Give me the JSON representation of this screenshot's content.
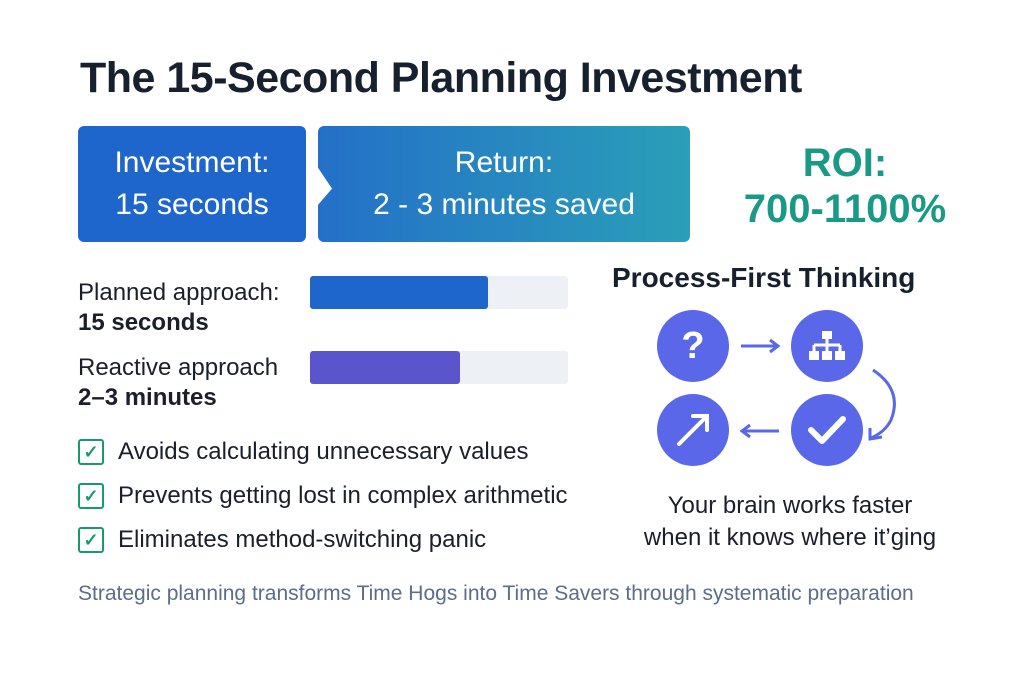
{
  "title": "The 15-Second Planning Investment",
  "investment": {
    "label": "Investment:",
    "value": "15 seconds"
  },
  "return": {
    "label": "Return:",
    "value": "2 - 3 minutes saved"
  },
  "roi": {
    "label": "ROI:",
    "value": "700-1100%"
  },
  "comparison": [
    {
      "label": "Planned approach:",
      "time": "15 seconds",
      "fill_percent": 69,
      "color": "#1f66cc"
    },
    {
      "label": "Reactive approach",
      "time": "2–3 minutes",
      "fill_percent": 58,
      "color": "#5a55cc"
    }
  ],
  "benefits": [
    "Avoids calculating unnecessary values",
    "Prevents getting lost in complex arithmetic",
    "Eliminates method-switching panic"
  ],
  "process": {
    "title": "Process-First Thinking",
    "steps": [
      "question-icon",
      "hierarchy-icon",
      "check-icon",
      "arrow-up-right-icon"
    ],
    "caption_line1": "Your brain works faster",
    "caption_line2": "when it knows where it’ging"
  },
  "footer": "Strategic planning transforms Time Hogs into Time Savers through systematic preparation"
}
